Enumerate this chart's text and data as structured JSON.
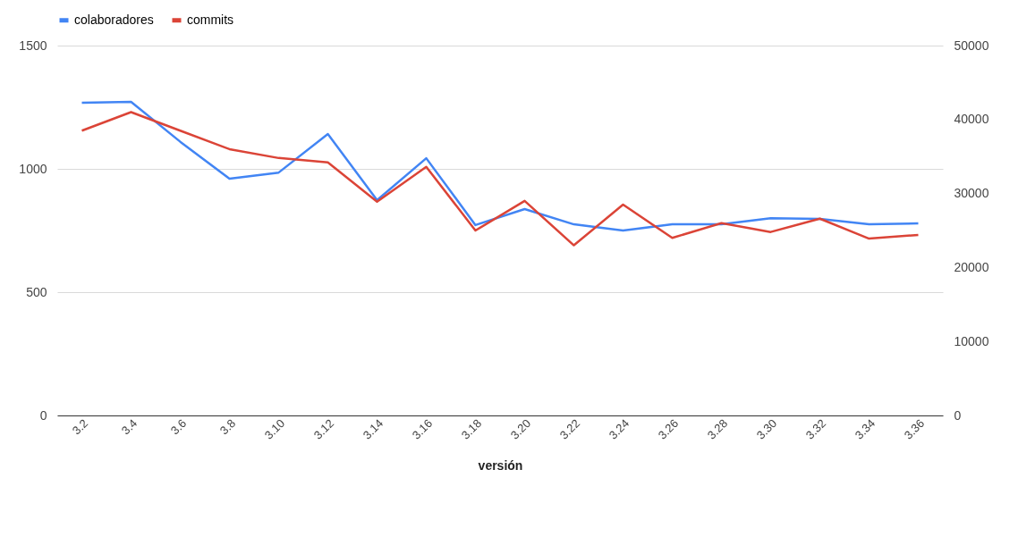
{
  "chart_data": {
    "type": "line",
    "xlabel": "versión",
    "categories": [
      "3.2",
      "3.4",
      "3.6",
      "3.8",
      "3.10",
      "3.12",
      "3.14",
      "3.16",
      "3.18",
      "3.20",
      "3.22",
      "3.24",
      "3.26",
      "3.28",
      "3.30",
      "3.32",
      "3.34",
      "3.36"
    ],
    "series": [
      {
        "name": "colaboradores",
        "color": "#4285f4",
        "values": [
          1268,
          1272,
          1110,
          960,
          985,
          1141,
          873,
          1043,
          772,
          837,
          775,
          750,
          775,
          775,
          800,
          797,
          775,
          779
        ]
      },
      {
        "name": "commits",
        "color": "#db4437",
        "axis": "y2",
        "values": [
          38500,
          41000,
          38500,
          36000,
          34800,
          34200,
          28900,
          33600,
          25000,
          29000,
          23000,
          28500,
          24000,
          26000,
          24800,
          26600,
          23900,
          24400
        ]
      }
    ],
    "ylim": [
      0,
      1500
    ],
    "yticks": [
      0,
      500,
      1000,
      1500
    ],
    "y2lim": [
      0,
      50000
    ],
    "y2ticks": [
      0,
      10000,
      20000,
      30000,
      40000,
      50000
    ],
    "grid": "y",
    "legend": "top",
    "marker": "none",
    "line_style": "solid"
  }
}
